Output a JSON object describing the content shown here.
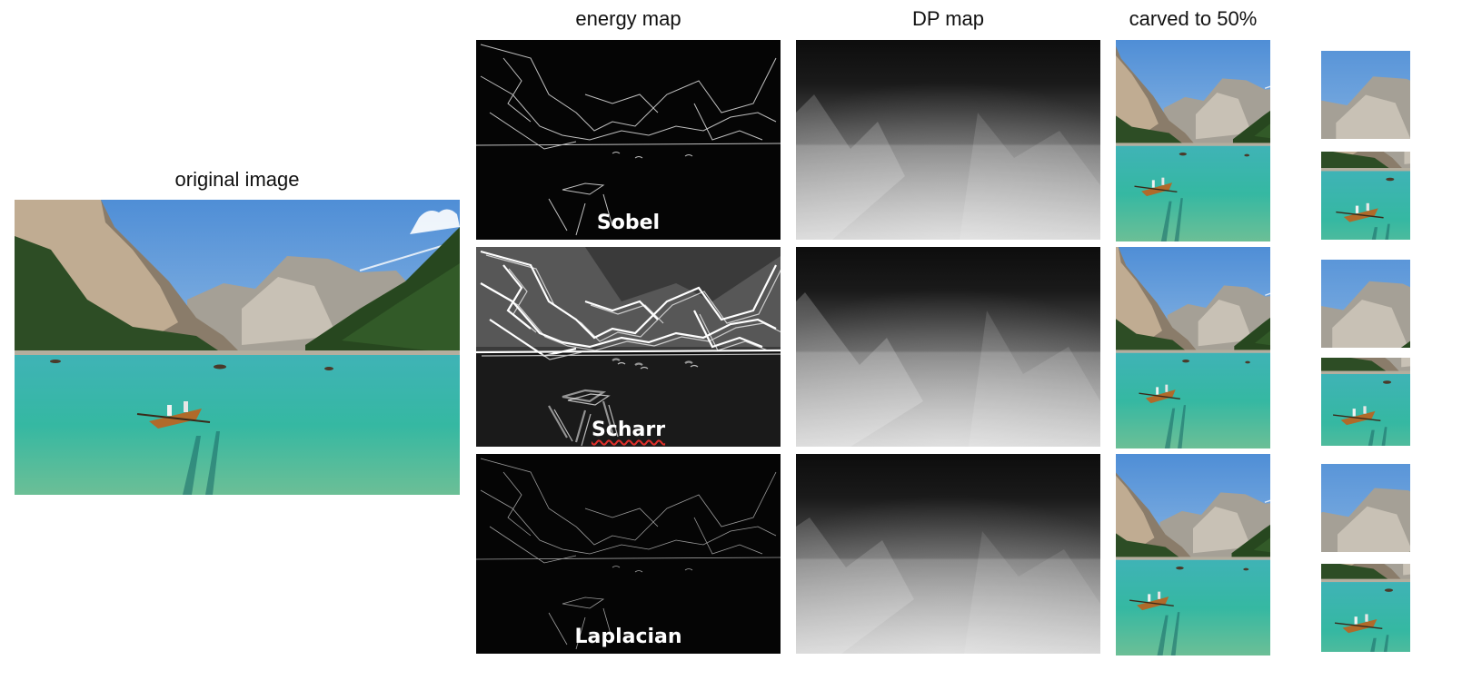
{
  "headers": {
    "original": "original image",
    "energy": "energy map",
    "dp": "DP map",
    "carved": "carved to 50%"
  },
  "methods": [
    "Sobel",
    "Scharr",
    "Laplacian"
  ],
  "colors": {
    "sky": "#6fa6df",
    "water": "#2fb5a8",
    "forest": "#27471f",
    "rock": "#a89c8c",
    "boat": "#b06a2a"
  }
}
